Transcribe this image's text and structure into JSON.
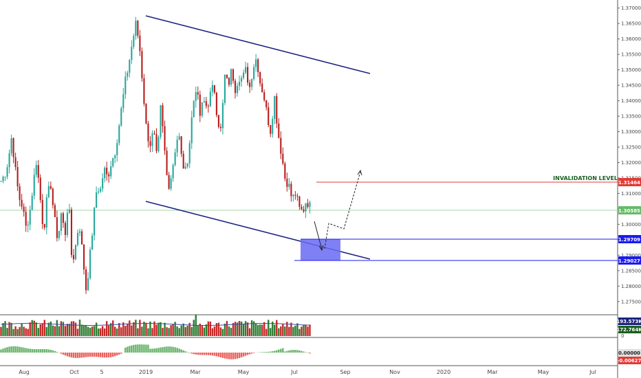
{
  "chart_data": [
    {
      "type": "candlestick",
      "panel": "price",
      "colors": {
        "up": "#26a69a",
        "down": "#b71c1c",
        "channel": "#1a237e",
        "invalidation": "#e53935",
        "zone": "#0000ff",
        "current": "#66bb6a"
      },
      "y_ticks": [
        "1.37000",
        "1.36500",
        "1.36000",
        "1.35500",
        "1.35000",
        "1.34500",
        "1.34000",
        "1.33500",
        "1.33000",
        "1.32500",
        "1.32000",
        "1.31500",
        "1.31000",
        "1.30500",
        "1.30000",
        "1.29500",
        "1.29000",
        "1.28500",
        "1.28000",
        "1.27500"
      ],
      "ylim": [
        1.2725,
        1.3715
      ],
      "closes": [
        1.314,
        1.316,
        1.3205,
        1.3285,
        1.318,
        1.309,
        1.306,
        1.299,
        1.303,
        1.3125,
        1.321,
        1.309,
        1.2975,
        1.309,
        1.313,
        1.302,
        1.295,
        1.304,
        1.296,
        1.309,
        1.287,
        1.293,
        1.301,
        1.29,
        1.2785,
        1.289,
        1.301,
        1.312,
        1.311,
        1.318,
        1.315,
        1.32,
        1.323,
        1.33,
        1.338,
        1.346,
        1.352,
        1.359,
        1.365,
        1.358,
        1.344,
        1.33,
        1.326,
        1.33,
        1.32,
        1.338,
        1.325,
        1.312,
        1.316,
        1.324,
        1.33,
        1.32,
        1.317,
        1.325,
        1.338,
        1.345,
        1.335,
        1.34,
        1.338,
        1.342,
        1.345,
        1.334,
        1.33,
        1.348,
        1.345,
        1.35,
        1.344,
        1.348,
        1.347,
        1.35,
        1.344,
        1.351,
        1.354,
        1.346,
        1.342,
        1.335,
        1.33,
        1.342,
        1.33,
        1.323,
        1.315,
        1.313,
        1.308,
        1.31,
        1.305,
        1.304,
        1.308,
        1.3058
      ],
      "channel_upper_label": "",
      "channel_lower_label": "",
      "invalidation_label": "INVALIDATION LEVEL",
      "levels": {
        "invalidation": "1.31464",
        "current": "1.30585",
        "zone_top": "1.29709",
        "zone_bottom": "1.29027"
      }
    },
    {
      "type": "bar",
      "panel": "volume",
      "labels": [
        "193.573K",
        "172.764K"
      ],
      "baseline_label": "0"
    },
    {
      "type": "histogram",
      "panel": "oscillator",
      "labels": [
        "0.00000",
        "-0.00627"
      ]
    }
  ],
  "x_ticks": [
    "Aug",
    "Oct",
    "5",
    "2019",
    "Mar",
    "May",
    "Jul",
    "Sep",
    "Nov",
    "2020",
    "Mar",
    "May",
    "Jul"
  ]
}
